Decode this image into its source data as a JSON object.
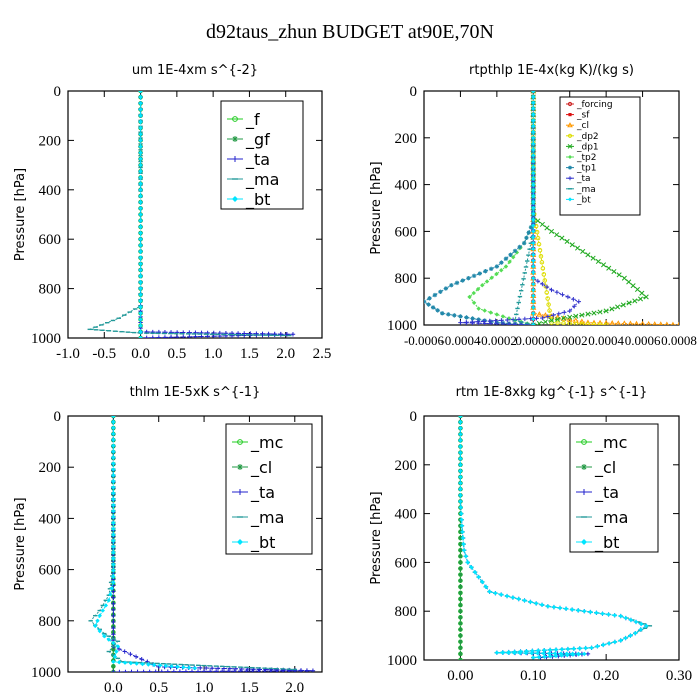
{
  "title": "d92taus_zhun  BUDGET at90E,70N",
  "chart_data": [
    {
      "type": "line",
      "title": "um   1E-4xm s^{-2}",
      "ylabel": "Pressure [hPa]",
      "xlim": [
        -1.0,
        2.5
      ],
      "ylim": [
        1000,
        0
      ],
      "xticks": [
        "-1.0",
        "-0.5",
        "0.0",
        "0.5",
        "1.0",
        "1.5",
        "2.0",
        "2.5"
      ],
      "xtick_values": [
        -1.0,
        -0.5,
        0.0,
        0.5,
        1.0,
        1.5,
        2.0,
        2.5
      ],
      "yticks": [
        "0",
        "200",
        "400",
        "600",
        "800",
        "1000"
      ],
      "ytick_values": [
        0,
        200,
        400,
        600,
        800,
        1000
      ],
      "legend_position": "top-right",
      "legend_size": "large",
      "series": [
        {
          "name": "_f",
          "color": "#22cc22",
          "marker": "circle",
          "x": [
            0,
            0,
            0,
            0,
            0
          ],
          "y": [
            0,
            250,
            500,
            750,
            1000
          ]
        },
        {
          "name": "_gf",
          "color": "#229944",
          "marker": "star",
          "x": [
            0,
            0,
            0,
            0,
            0
          ],
          "y": [
            0,
            250,
            500,
            750,
            1000
          ]
        },
        {
          "name": "_ta",
          "color": "#2222cc",
          "marker": "plus",
          "x": [
            0,
            0,
            0,
            0,
            0,
            2.1,
            0
          ],
          "y": [
            0,
            400,
            800,
            960,
            975,
            985,
            1000
          ]
        },
        {
          "name": "_ma",
          "color": "#229999",
          "marker": "dash",
          "x": [
            0,
            0,
            0,
            -0.3,
            -0.7,
            0,
            2.05
          ],
          "y": [
            0,
            500,
            870,
            920,
            965,
            980,
            990
          ]
        },
        {
          "name": "_bt",
          "color": "#00e5ff",
          "marker": "diamond",
          "x": [
            0,
            0,
            0,
            0
          ],
          "y": [
            0,
            400,
            800,
            1000
          ]
        }
      ]
    },
    {
      "type": "line",
      "title": "rtpthlp   1E-4x(kg K)/(kg s)",
      "ylabel": "Pressure [hPa]",
      "xlim": [
        -0.0006,
        0.0008
      ],
      "ylim": [
        1000,
        0
      ],
      "xticks": [
        "-0.0006",
        "-0.0004",
        "-0.0002",
        "0.0000",
        "0.0002",
        "0.0004",
        "0.0006",
        "0.0008"
      ],
      "xtick_values": [
        -0.0006,
        -0.0004,
        -0.0002,
        0.0,
        0.0002,
        0.0004,
        0.0006,
        0.0008
      ],
      "yticks": [
        "0",
        "200",
        "400",
        "600",
        "800",
        "1000"
      ],
      "ytick_values": [
        0,
        200,
        400,
        600,
        800,
        1000
      ],
      "legend_position": "top-right",
      "legend_size": "small",
      "series": [
        {
          "name": "_forcing",
          "color": "#cc2222",
          "marker": "circle",
          "x": [
            0,
            0,
            0
          ],
          "y": [
            0,
            500,
            1000
          ]
        },
        {
          "name": "_sf",
          "color": "#dd1111",
          "marker": "square",
          "x": [
            0,
            0,
            0
          ],
          "y": [
            0,
            500,
            1000
          ]
        },
        {
          "name": "_cl",
          "color": "#ff9900",
          "marker": "triangle",
          "x": [
            0,
            0,
            0,
            0.0003,
            0.0008
          ],
          "y": [
            0,
            500,
            950,
            990,
            1000
          ]
        },
        {
          "name": "_dp2",
          "color": "#dddd00",
          "marker": "circle",
          "x": [
            0,
            0,
            0.0001,
            0.0004
          ],
          "y": [
            0,
            500,
            990,
            1000
          ]
        },
        {
          "name": "_dp1",
          "color": "#22aa22",
          "marker": "cross",
          "x": [
            0,
            0,
            0.0001,
            0.0003,
            0.0005,
            0.00062,
            0.0004,
            0.0001,
            0
          ],
          "y": [
            0,
            540,
            600,
            700,
            800,
            880,
            940,
            980,
            1000
          ]
        },
        {
          "name": "_tp2",
          "color": "#55dd55",
          "marker": "diamond",
          "x": [
            0,
            0,
            -5e-05,
            -0.00015,
            -0.00028,
            -0.00035,
            -0.0003,
            -0.0001,
            0
          ],
          "y": [
            0,
            560,
            650,
            750,
            830,
            880,
            930,
            980,
            1000
          ]
        },
        {
          "name": "_tp1",
          "color": "#2288aa",
          "marker": "star",
          "x": [
            0,
            0,
            -5e-05,
            -0.0002,
            -0.00045,
            -0.0006,
            -0.0005,
            -0.0002,
            0
          ],
          "y": [
            0,
            560,
            650,
            750,
            830,
            900,
            950,
            990,
            1000
          ]
        },
        {
          "name": "_ta",
          "color": "#3333cc",
          "marker": "plus",
          "x": [
            0,
            0,
            0.0001,
            0.00025,
            0.0002,
            5e-05,
            -0.0004,
            0
          ],
          "y": [
            0,
            800,
            850,
            900,
            940,
            970,
            990,
            1000
          ]
        },
        {
          "name": "_ma",
          "color": "#229999",
          "marker": "dash",
          "x": [
            0,
            0,
            -0.0001,
            0
          ],
          "y": [
            0,
            600,
            980,
            1000
          ]
        },
        {
          "name": "_bt",
          "color": "#00e5ff",
          "marker": "diamond",
          "x": [
            0,
            0,
            0
          ],
          "y": [
            0,
            500,
            1000
          ]
        }
      ]
    },
    {
      "type": "line",
      "title": "thlm   1E-5xK s^{-1}",
      "ylabel": "Pressure [hPa]",
      "xlim": [
        -0.5,
        2.3
      ],
      "ylim": [
        1000,
        0
      ],
      "xticks": [
        "0.0",
        "0.5",
        "1.0",
        "1.5",
        "2.0"
      ],
      "xtick_values": [
        0.0,
        0.5,
        1.0,
        1.5,
        2.0
      ],
      "yticks": [
        "0",
        "200",
        "400",
        "600",
        "800",
        "1000"
      ],
      "ytick_values": [
        0,
        200,
        400,
        600,
        800,
        1000
      ],
      "legend_position": "top-right",
      "legend_size": "large",
      "series": [
        {
          "name": "_mc",
          "color": "#22cc22",
          "marker": "circle",
          "x": [
            0,
            0,
            0,
            0
          ],
          "y": [
            0,
            400,
            800,
            1000
          ]
        },
        {
          "name": "_cl",
          "color": "#229944",
          "marker": "star",
          "x": [
            0,
            0,
            0,
            0
          ],
          "y": [
            0,
            400,
            800,
            1000
          ]
        },
        {
          "name": "_ta",
          "color": "#2222cc",
          "marker": "plus",
          "x": [
            0,
            0,
            0,
            0.5,
            2.2,
            0
          ],
          "y": [
            0,
            400,
            900,
            980,
            995,
            1000
          ]
        },
        {
          "name": "_ma",
          "color": "#229999",
          "marker": "dash",
          "x": [
            0,
            0,
            -0.05,
            -0.15,
            -0.25,
            -0.1,
            0.05,
            -0.05,
            0.1,
            1.0,
            2.0
          ],
          "y": [
            0,
            600,
            700,
            760,
            800,
            850,
            880,
            920,
            960,
            975,
            990
          ]
        },
        {
          "name": "_bt",
          "color": "#00e5ff",
          "marker": "diamond",
          "x": [
            0,
            0,
            -0.05,
            -0.15,
            -0.2,
            -0.1,
            0.05,
            0,
            0.9
          ],
          "y": [
            0,
            650,
            720,
            780,
            820,
            860,
            900,
            960,
            985
          ]
        }
      ]
    },
    {
      "type": "line",
      "title": "rtm   1E-8xkg kg^{-1} s^{-1}",
      "ylabel": "Pressure [hPa]",
      "xlim": [
        -0.05,
        0.3
      ],
      "ylim": [
        1000,
        0
      ],
      "xticks": [
        "0.00",
        "0.10",
        "0.20",
        "0.30"
      ],
      "xtick_values": [
        0.0,
        0.1,
        0.2,
        0.3
      ],
      "yticks": [
        "0",
        "200",
        "400",
        "600",
        "800",
        "1000"
      ],
      "ytick_values": [
        0,
        200,
        400,
        600,
        800,
        1000
      ],
      "legend_position": "top-right",
      "legend_size": "large",
      "series": [
        {
          "name": "_mc",
          "color": "#22cc22",
          "marker": "circle",
          "x": [
            0,
            0,
            0
          ],
          "y": [
            0,
            500,
            1000
          ]
        },
        {
          "name": "_cl",
          "color": "#229944",
          "marker": "star",
          "x": [
            0,
            0,
            0
          ],
          "y": [
            0,
            500,
            1000
          ]
        },
        {
          "name": "_ta",
          "color": "#2222cc",
          "marker": "plus",
          "x": [
            0,
            0,
            0.002,
            0.005,
            0.01,
            0.02,
            0.03,
            0.04,
            0.12,
            0.22,
            0.255,
            0.24,
            0.22,
            0.18,
            0.05,
            0.175,
            0.11
          ],
          "y": [
            0,
            350,
            450,
            550,
            600,
            640,
            680,
            720,
            780,
            820,
            860,
            890,
            920,
            950,
            970,
            975,
            990
          ]
        },
        {
          "name": "_ma",
          "color": "#229999",
          "marker": "dash",
          "x": [
            0,
            0,
            0.002,
            0.005,
            0.01,
            0.02,
            0.03,
            0.04,
            0.12,
            0.22,
            0.26,
            0.24,
            0.22,
            0.18,
            0.05,
            0.17,
            0.1
          ],
          "y": [
            0,
            350,
            450,
            550,
            600,
            640,
            680,
            720,
            780,
            820,
            860,
            890,
            920,
            950,
            970,
            975,
            990
          ]
        },
        {
          "name": "_bt",
          "color": "#00e5ff",
          "marker": "diamond",
          "x": [
            0,
            0,
            0.002,
            0.005,
            0.01,
            0.02,
            0.03,
            0.04,
            0.12,
            0.22,
            0.255,
            0.24,
            0.22,
            0.18,
            0.05,
            0.17,
            0.1
          ],
          "y": [
            0,
            350,
            450,
            550,
            600,
            640,
            680,
            720,
            780,
            820,
            860,
            890,
            920,
            950,
            970,
            975,
            990
          ]
        }
      ]
    }
  ]
}
